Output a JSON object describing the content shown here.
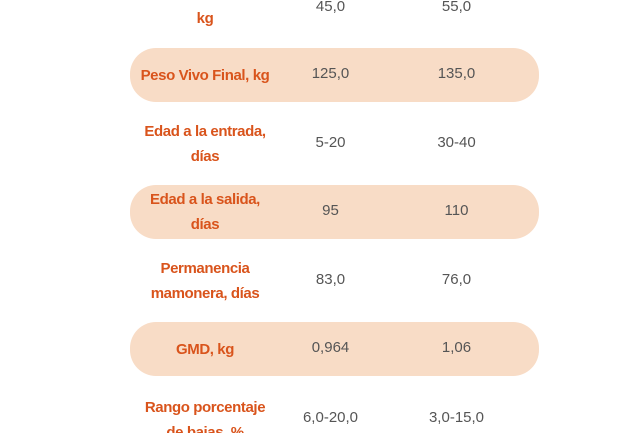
{
  "rows": [
    {
      "label_lines": [
        "kg"
      ],
      "value1": "45,0",
      "value2": "55,0"
    },
    {
      "label_lines": [
        "Peso Vivo Final, kg"
      ],
      "value1": "125,0",
      "value2": "135,0"
    },
    {
      "label_lines": [
        "Edad a la entrada,",
        "días"
      ],
      "value1": "5-20",
      "value2": "30-40"
    },
    {
      "label_lines": [
        "Edad a la salida,",
        "días"
      ],
      "value1": "95",
      "value2": "110"
    },
    {
      "label_lines": [
        "Permanencia",
        "mamonera, días"
      ],
      "value1": "83,0",
      "value2": "76,0"
    },
    {
      "label_lines": [
        "GMD, kg"
      ],
      "value1": "0,964",
      "value2": "1,06"
    },
    {
      "label_lines": [
        "Rango porcentaje",
        "de bajas, %"
      ],
      "value1": "6,0-20,0",
      "value2": "3,0-15,0"
    }
  ],
  "colors": {
    "label": "#d9541c",
    "value": "#555555",
    "band": "#f8dcc6"
  }
}
